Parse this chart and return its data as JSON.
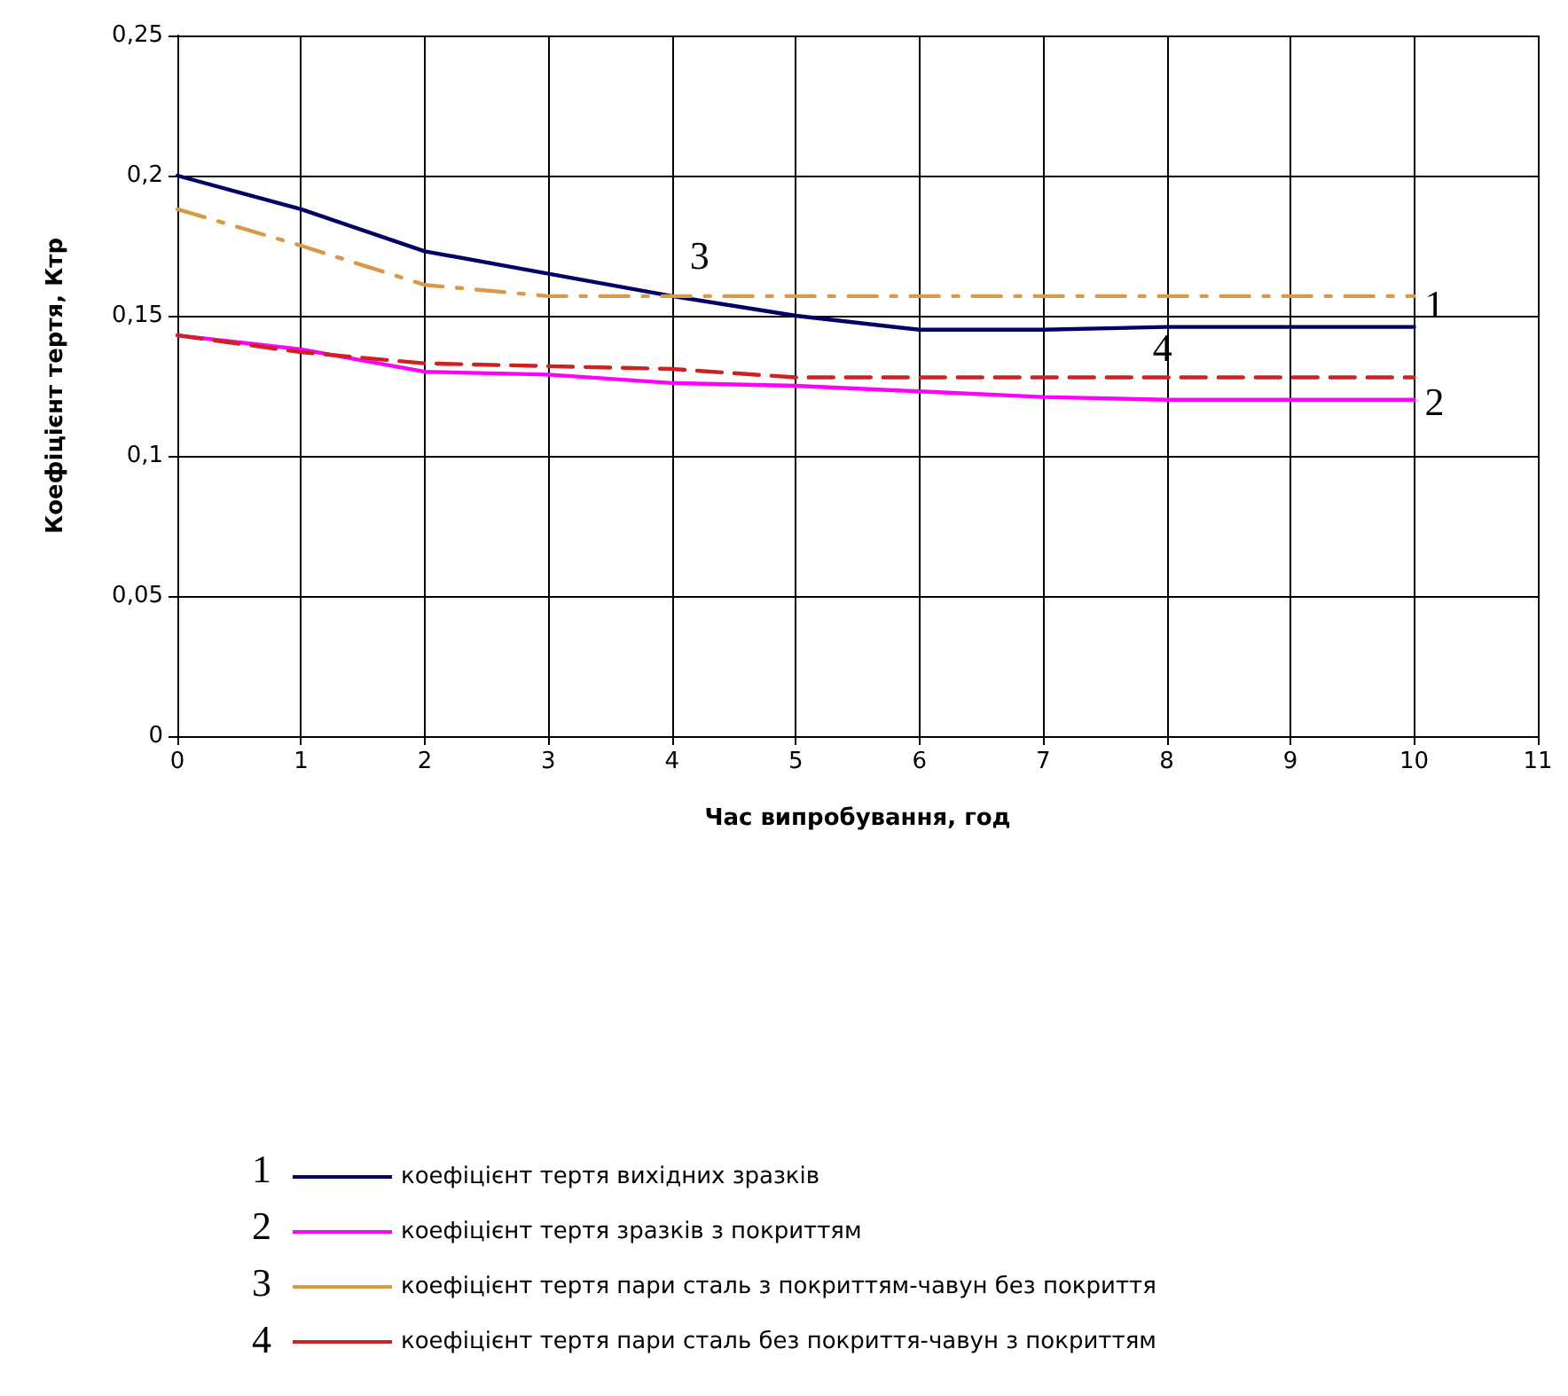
{
  "chart_data": {
    "type": "line",
    "xlabel": "Час випробування, год",
    "ylabel": "Коефіцієнт тертя, Ктр",
    "x": [
      0,
      1,
      2,
      3,
      4,
      5,
      6,
      7,
      8,
      9,
      10
    ],
    "series": [
      {
        "name": "коефіцієнт тертя вихідних зразків",
        "color": "#000066",
        "line_style": "solid",
        "values": [
          0.2,
          0.188,
          0.173,
          0.165,
          0.157,
          0.15,
          0.145,
          0.145,
          0.146,
          0.146,
          0.146
        ]
      },
      {
        "name": "коефіцієнт тертя зразків з покриттям",
        "color": "#ff00ff",
        "line_style": "solid",
        "values": [
          0.143,
          0.138,
          0.13,
          0.129,
          0.126,
          0.125,
          0.123,
          0.121,
          0.12,
          0.12,
          0.12
        ]
      },
      {
        "name": "коефіцієнт тертя пари сталь з покриттям-чавун без покриття",
        "color": "#d89a4a",
        "line_style": "dashdot",
        "values": [
          0.188,
          0.175,
          0.161,
          0.157,
          0.157,
          0.157,
          0.157,
          0.157,
          0.157,
          0.157,
          0.157
        ]
      },
      {
        "name": "коефіцієнт тертя пари сталь без покриття-чавун з покриттям",
        "color": "#cc2222",
        "line_style": "dashed",
        "values": [
          0.143,
          0.137,
          0.133,
          0.132,
          0.131,
          0.128,
          0.128,
          0.128,
          0.128,
          0.128,
          0.128
        ]
      }
    ],
    "annotations": [
      "1",
      "2",
      "3",
      "4"
    ],
    "xlim": [
      0,
      11
    ],
    "xticks": [
      0,
      1,
      2,
      3,
      4,
      5,
      6,
      7,
      8,
      9,
      10,
      11
    ],
    "ylim": [
      0,
      0.25
    ],
    "yticks": [
      {
        "value": 0,
        "label": "0"
      },
      {
        "value": 0.05,
        "label": "0,05"
      },
      {
        "value": 0.1,
        "label": "0,1"
      },
      {
        "value": 0.15,
        "label": "0,15"
      },
      {
        "value": 0.2,
        "label": "0,2"
      },
      {
        "value": 0.25,
        "label": "0,25"
      }
    ],
    "grid": true,
    "legend": "bottom",
    "marker": "none"
  }
}
